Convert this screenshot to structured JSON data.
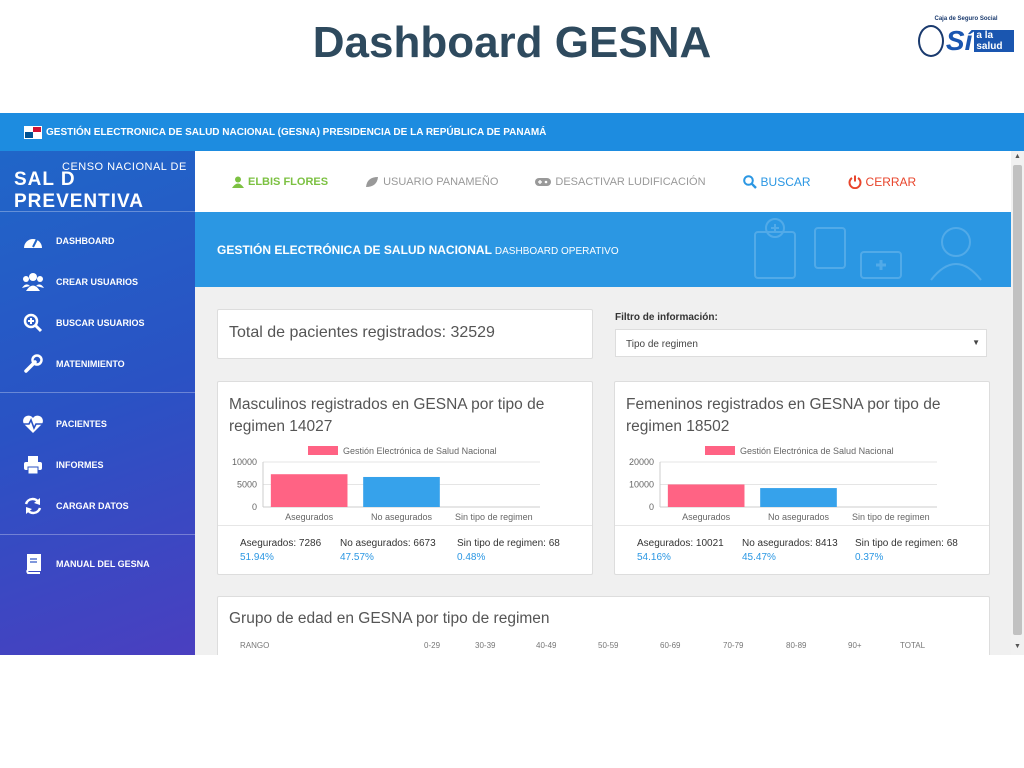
{
  "slide": {
    "title": "Dashboard GESNA"
  },
  "logo": {
    "top_text": "Caja de Seguro Social",
    "si": "Sí",
    "salud": "a la salud"
  },
  "topbar": {
    "title": "GESTIÓN ELECTRONICA DE SALUD NACIONAL (GESNA) PRESIDENCIA DE LA REPÚBLICA DE PANAMÁ"
  },
  "brand": {
    "line1": "CENSO NACIONAL DE",
    "line2": "SAL  D PREVENTIVA"
  },
  "sidebar": {
    "items": [
      {
        "label": "DASHBOARD",
        "icon": "dashboard-icon"
      },
      {
        "label": "CREAR USUARIOS",
        "icon": "users-icon"
      },
      {
        "label": "BUSCAR USUARIOS",
        "icon": "search-plus-icon"
      },
      {
        "label": "MATENIMIENTO",
        "icon": "wrench-icon"
      },
      {
        "label": "PACIENTES",
        "icon": "heartbeat-icon"
      },
      {
        "label": "INFORMES",
        "icon": "printer-icon"
      },
      {
        "label": "CARGAR DATOS",
        "icon": "refresh-icon"
      },
      {
        "label": "MANUAL DEL GESNA",
        "icon": "book-icon"
      }
    ]
  },
  "actions": {
    "user": "ELBIS FLORES",
    "profile": "USUARIO PANAMEÑO",
    "gamification": "DESACTIVAR LUDIFICACIÓN",
    "search": "BUSCAR",
    "close": "CERRAR",
    "colors": {
      "user": "#7cc142",
      "muted": "#999999",
      "search": "#2b97e3",
      "close": "#e8452c"
    }
  },
  "banner": {
    "title": "GESTIÓN ELECTRÓNICA DE SALUD NACIONAL",
    "subtitle": "DASHBOARD OPERATIVO"
  },
  "total": {
    "text": "Total de pacientes registrados: 32529"
  },
  "filter": {
    "label": "Filtro de información:",
    "selected": "Tipo de regimen"
  },
  "charts": [
    {
      "title": "Masculinos registrados en GESNA por tipo de regimen 14027",
      "stats": [
        {
          "label": "Asegurados: 7286",
          "pct": "51.94%"
        },
        {
          "label": "No asegurados: 6673",
          "pct": "47.57%"
        },
        {
          "label": "Sin tipo de regimen: 68",
          "pct": "0.48%"
        }
      ]
    },
    {
      "title": "Femeninos registrados en GESNA por tipo de regimen 18502",
      "stats": [
        {
          "label": "Asegurados: 10021",
          "pct": "54.16%"
        },
        {
          "label": "No asegurados: 8413",
          "pct": "45.47%"
        },
        {
          "label": "Sin tipo de regimen: 68",
          "pct": "0.37%"
        }
      ]
    }
  ],
  "chart_data": [
    {
      "type": "bar",
      "legend": "Gestión Electrónica de Salud Nacional",
      "categories": [
        "Asegurados",
        "No asegurados",
        "Sin tipo de regimen"
      ],
      "values": [
        7286,
        6673,
        68
      ],
      "colors": [
        "#ff6384",
        "#36a2eb",
        "#cccccc"
      ],
      "yticks": [
        10000,
        5000,
        0
      ],
      "ylim": [
        0,
        10000
      ]
    },
    {
      "type": "bar",
      "legend": "Gestión Electrónica de Salud Nacional",
      "categories": [
        "Asegurados",
        "No asegurados",
        "Sin tipo de regimen"
      ],
      "values": [
        10021,
        8413,
        68
      ],
      "colors": [
        "#ff6384",
        "#36a2eb",
        "#cccccc"
      ],
      "yticks": [
        20000,
        10000,
        0
      ],
      "ylim": [
        0,
        20000
      ]
    }
  ],
  "age_table": {
    "title": "Grupo de edad en GESNA por tipo de regimen",
    "headers": [
      "RANGO",
      "0-29",
      "30-39",
      "40-49",
      "50-59",
      "60-69",
      "70-79",
      "80-89",
      "90+",
      "TOTAL"
    ]
  }
}
